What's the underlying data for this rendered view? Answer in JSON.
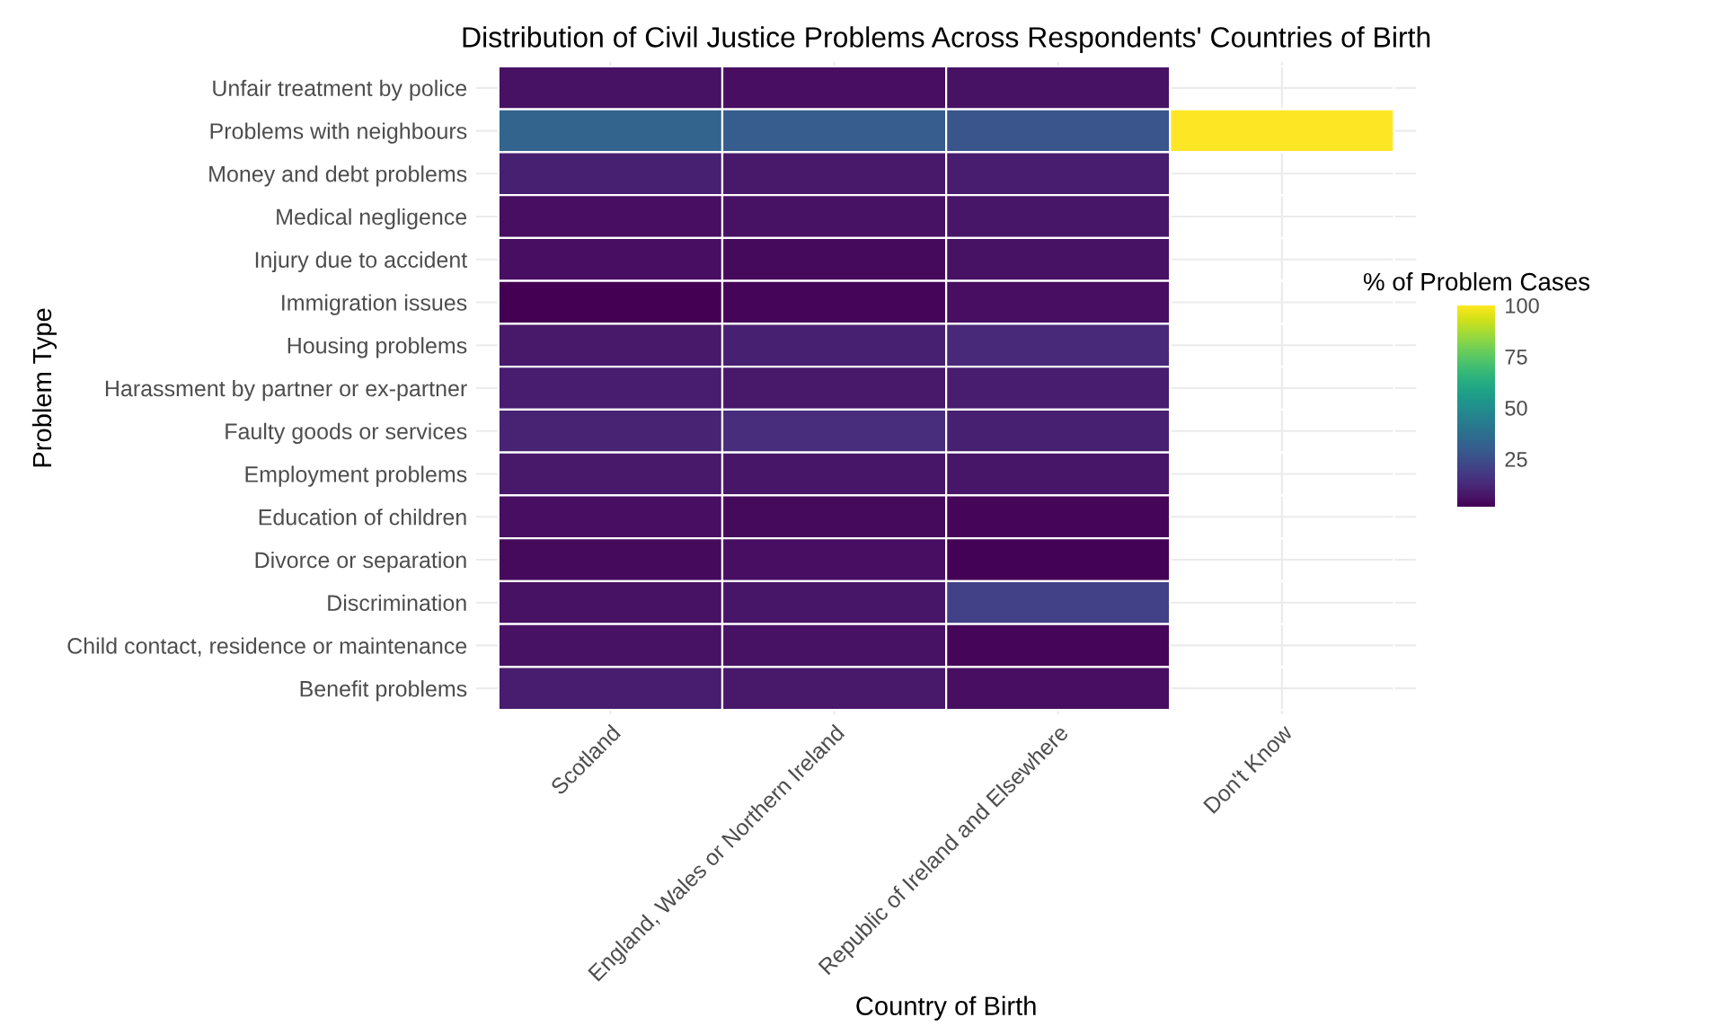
{
  "chart_data": {
    "type": "heatmap",
    "title": "Distribution of Civil Justice Problems Across Respondents' Countries of Birth",
    "xlabel": "Country of Birth",
    "ylabel": "Problem Type",
    "clabel": "% of Problem Cases",
    "categories": [
      "Scotland",
      "England, Wales or Northern Ireland",
      "Republic of Ireland and Elsewhere",
      "Don't Know"
    ],
    "y_categories": [
      "Unfair treatment by police",
      "Problems with neighbours",
      "Money and debt problems",
      "Medical negligence",
      "Injury due to accident",
      "Immigration issues",
      "Housing problems",
      "Harassment by partner or ex-partner",
      "Faulty goods or services",
      "Employment problems",
      "Education of children",
      "Divorce or separation",
      "Discrimination",
      "Child contact, residence or maintenance",
      "Benefit problems"
    ],
    "cells": [
      [
        6,
        5,
        6,
        null
      ],
      [
        33,
        30,
        27,
        100
      ],
      [
        10,
        8,
        9,
        null
      ],
      [
        5,
        6,
        7,
        null
      ],
      [
        5,
        4,
        6,
        null
      ],
      [
        1.5,
        3,
        5,
        null
      ],
      [
        8,
        10,
        13,
        null
      ],
      [
        9,
        8,
        9,
        null
      ],
      [
        11,
        14,
        10,
        null
      ],
      [
        8,
        7,
        7,
        null
      ],
      [
        5,
        4,
        3,
        null
      ],
      [
        4,
        5,
        2,
        null
      ],
      [
        6,
        7,
        20,
        null
      ],
      [
        6,
        6,
        3,
        null
      ],
      [
        9,
        8,
        5,
        null
      ]
    ],
    "clim": [
      1.5,
      100
    ],
    "cticks": [
      25,
      50,
      75,
      100
    ],
    "grid": true
  }
}
